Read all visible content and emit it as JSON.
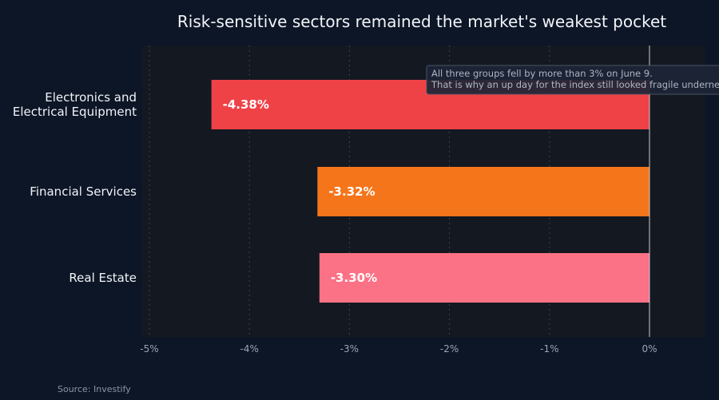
{
  "chart_data": {
    "type": "bar",
    "orientation": "horizontal",
    "title": "Risk-sensitive sectors remained the market's weakest pocket",
    "xlabel": "",
    "ylabel": "",
    "categories": [
      [
        "Electronics and",
        "Electrical Equipment"
      ],
      [
        "Financial Services"
      ],
      [
        "Real Estate"
      ]
    ],
    "values": [
      -4.38,
      -3.32,
      -3.3
    ],
    "value_labels": [
      "-4.38%",
      "-3.32%",
      "-3.30%"
    ],
    "bar_colors": [
      "#ef4247",
      "#f5751b",
      "#fb7185"
    ],
    "xlim": [
      -5,
      0
    ],
    "xticks": [
      -5,
      -4,
      -3,
      -2,
      -1,
      0
    ],
    "xtick_labels": [
      "-5%",
      "-4%",
      "-3%",
      "-2%",
      "-1%",
      "0%"
    ],
    "grid": "vertical dotted",
    "annotation": [
      "All three groups fell by more than 3% on June 9.",
      "That is why an up day for the index still looked fragile underneath."
    ],
    "source": "Source: Investify"
  },
  "colors": {
    "background": "#0d1626",
    "plot_background": "#141821",
    "zero_line": "#c9ced8",
    "grid": "#3a4252"
  }
}
